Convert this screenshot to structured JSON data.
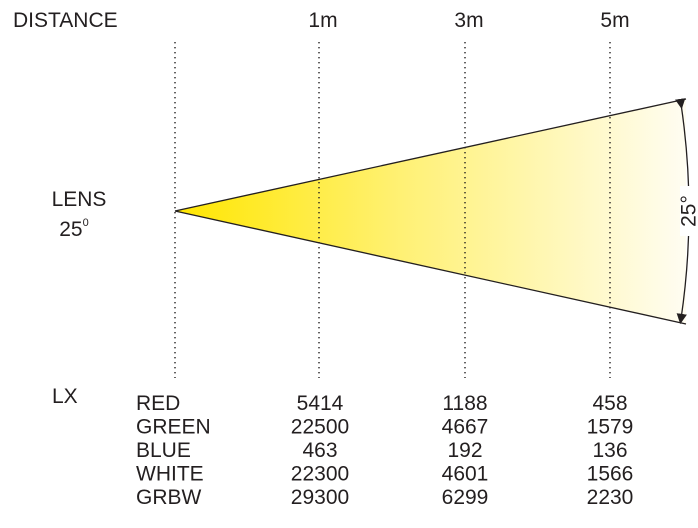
{
  "header": {
    "distance_label": "DISTANCE",
    "distances": [
      "1m",
      "3m",
      "5m"
    ]
  },
  "lens": {
    "label": "LENS",
    "angle_value": "25",
    "angle_unit": "0"
  },
  "beam": {
    "angle_label": "25°",
    "color_near": "#ffe600",
    "color_far": "#fffdf2"
  },
  "lux_table": {
    "unit_label": "LX",
    "columns": [
      "1m",
      "3m",
      "5m"
    ],
    "rows": [
      {
        "color": "RED",
        "values": [
          "5414",
          "1188",
          "458"
        ]
      },
      {
        "color": "GREEN",
        "values": [
          "22500",
          "4667",
          "1579"
        ]
      },
      {
        "color": "BLUE",
        "values": [
          "463",
          "192",
          "136"
        ]
      },
      {
        "color": "WHITE",
        "values": [
          "22300",
          "4601",
          "1566"
        ]
      },
      {
        "color": "GRBW",
        "values": [
          "29300",
          "6299",
          "2230"
        ]
      }
    ]
  }
}
